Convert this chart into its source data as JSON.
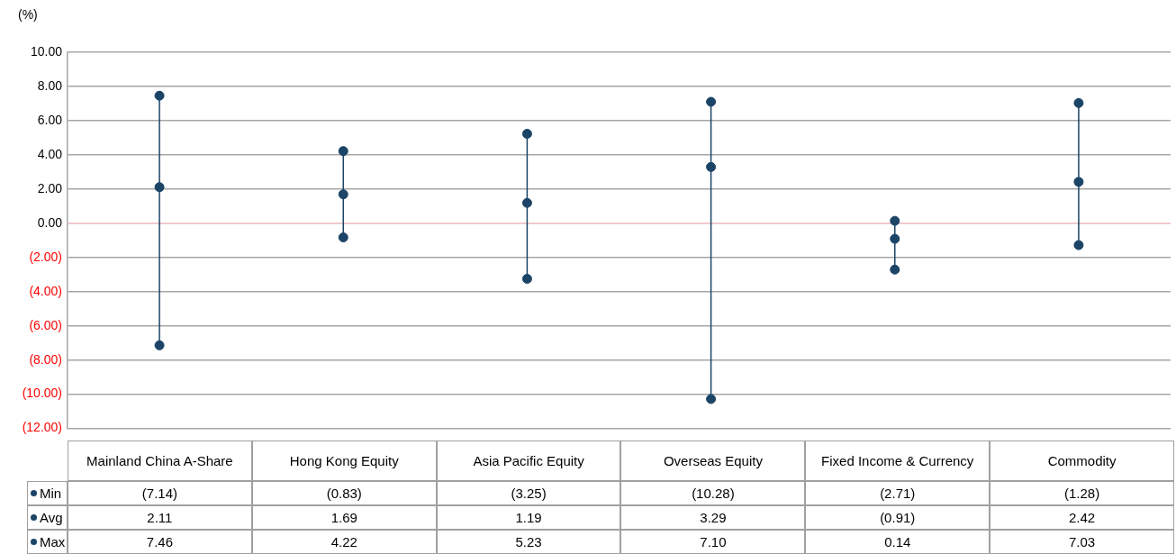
{
  "chart_data": {
    "type": "scatter",
    "ylabel": "(%)",
    "categories": [
      "Mainland China A-Share",
      "Hong Kong Equity",
      "Asia Pacific Equity",
      "Overseas Equity",
      "Fixed Income & Currency",
      "Commodity"
    ],
    "series": [
      {
        "name": "Min",
        "color": "#1b4467",
        "values": [
          -7.14,
          -0.83,
          -3.25,
          -10.28,
          -2.71,
          -1.28
        ],
        "value_labels": [
          "(7.14)",
          "(0.83)",
          "(3.25)",
          "(10.28)",
          "(2.71)",
          "(1.28)"
        ]
      },
      {
        "name": "Avg",
        "color": "#1b4467",
        "values": [
          2.11,
          1.69,
          1.19,
          3.29,
          -0.91,
          2.42
        ],
        "value_labels": [
          "2.11",
          "1.69",
          "1.19",
          "3.29",
          "(0.91)",
          "2.42"
        ]
      },
      {
        "name": "Max",
        "color": "#1b4467",
        "values": [
          7.46,
          4.22,
          5.23,
          7.1,
          0.14,
          7.03
        ],
        "value_labels": [
          "7.46",
          "4.22",
          "5.23",
          "7.10",
          "0.14",
          "7.03"
        ]
      }
    ],
    "ylim": [
      -12,
      10
    ],
    "yticks": [
      {
        "value": 10,
        "label": "10.00"
      },
      {
        "value": 8,
        "label": "8.00"
      },
      {
        "value": 6,
        "label": "6.00"
      },
      {
        "value": 4,
        "label": "4.00"
      },
      {
        "value": 2,
        "label": "2.00"
      },
      {
        "value": 0,
        "label": "0.00"
      },
      {
        "value": -2,
        "label": "(2.00)"
      },
      {
        "value": -4,
        "label": "(4.00)"
      },
      {
        "value": -6,
        "label": "(6.00)"
      },
      {
        "value": -8,
        "label": "(8.00)"
      },
      {
        "value": -10,
        "label": "(10.00)"
      },
      {
        "value": -12,
        "label": "(12.00)"
      }
    ],
    "ref_lines": [
      {
        "axis": "y",
        "value": 0,
        "color": "#f6c6cc"
      }
    ],
    "grid": "y",
    "legend": "bottom left",
    "marker": "circle"
  }
}
